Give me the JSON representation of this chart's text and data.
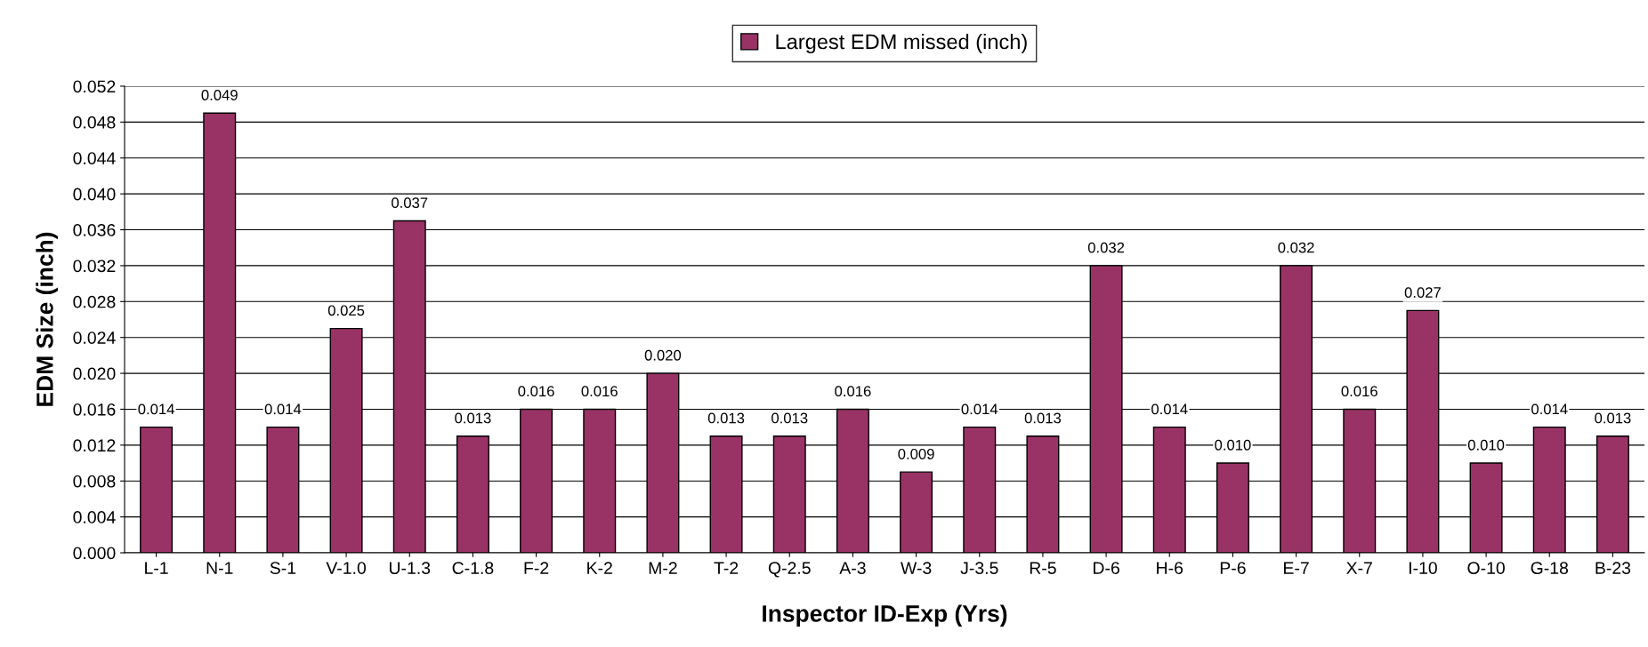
{
  "chart_data": {
    "type": "bar",
    "xlabel": "Inspector ID-Exp (Yrs)",
    "ylabel": "EDM Size (inch)",
    "categories": [
      "L-1",
      "N-1",
      "S-1",
      "V-1.0",
      "U-1.3",
      "C-1.8",
      "F-2",
      "K-2",
      "M-2",
      "T-2",
      "Q-2.5",
      "A-3",
      "W-3",
      "J-3.5",
      "R-5",
      "D-6",
      "H-6",
      "P-6",
      "E-7",
      "X-7",
      "I-10",
      "O-10",
      "G-18",
      "B-23"
    ],
    "series": [
      {
        "name": "Largest EDM missed (inch)",
        "color": "#993366",
        "values": [
          0.014,
          0.049,
          0.014,
          0.025,
          0.037,
          0.013,
          0.016,
          0.016,
          0.02,
          0.013,
          0.013,
          0.016,
          0.009,
          0.014,
          0.013,
          0.032,
          0.014,
          0.01,
          0.032,
          0.016,
          0.027,
          0.01,
          0.014,
          0.013
        ],
        "value_labels": [
          "0.014",
          "0.049",
          "0.014",
          "0.025",
          "0.037",
          "0.013",
          "0.016",
          "0.016",
          "0.020",
          "0.013",
          "0.013",
          "0.016",
          "0.009",
          "0.014",
          "0.013",
          "0.032",
          "0.014",
          "0.010",
          "0.032",
          "0.016",
          "0.027",
          "0.010",
          "0.014",
          "0.013"
        ]
      }
    ],
    "ylim": [
      0,
      0.052
    ],
    "yticks": [
      {
        "value": 0,
        "label": "0.000"
      },
      {
        "value": 0.004,
        "label": "0.004"
      },
      {
        "value": 0.008,
        "label": "0.008"
      },
      {
        "value": 0.012,
        "label": "0.012"
      },
      {
        "value": 0.016,
        "label": "0.016"
      },
      {
        "value": 0.02,
        "label": "0.020"
      },
      {
        "value": 0.024,
        "label": "0.024"
      },
      {
        "value": 0.028,
        "label": "0.028"
      },
      {
        "value": 0.032,
        "label": "0.032"
      },
      {
        "value": 0.036,
        "label": "0.036"
      },
      {
        "value": 0.04,
        "label": "0.040"
      },
      {
        "value": 0.044,
        "label": "0.044"
      },
      {
        "value": 0.048,
        "label": "0.048"
      },
      {
        "value": 0.052,
        "label": "0.052"
      }
    ],
    "grid": "y",
    "legend": "top"
  }
}
